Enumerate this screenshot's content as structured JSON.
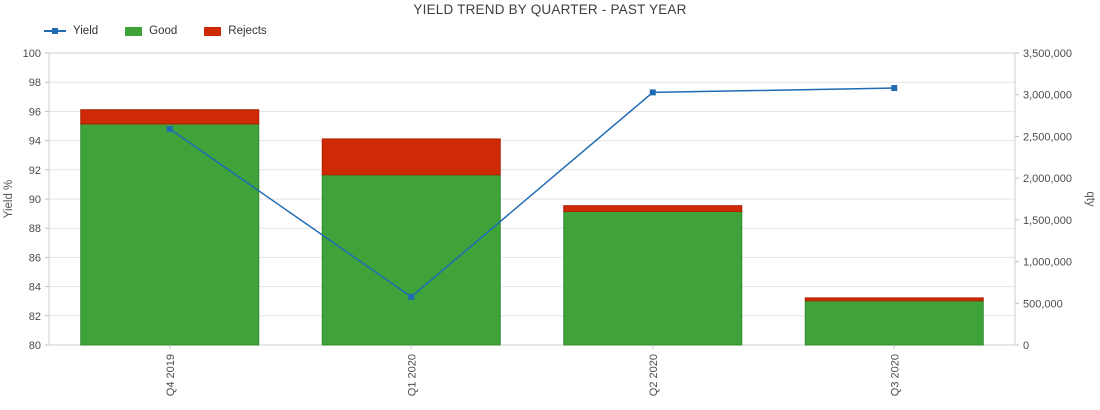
{
  "title": "YIELD TREND BY QUARTER - PAST YEAR",
  "chart_data": {
    "type": "combo",
    "stacked_bars": true,
    "title": "YIELD TREND BY QUARTER - PAST YEAR",
    "categories": [
      "Q4 2019",
      "Q1 2020",
      "Q2 2020",
      "Q3 2020"
    ],
    "series": [
      {
        "name": "Yield",
        "type": "line",
        "axis": "left",
        "color": "#1f6cb5",
        "values": [
          94.8,
          83.3,
          97.3,
          97.6
        ]
      },
      {
        "name": "Good",
        "type": "bar",
        "axis": "right",
        "color": "#3fa33a",
        "edge_color": "#2f8c2b",
        "values": [
          2650000,
          2040000,
          1600000,
          530000
        ]
      },
      {
        "name": "Rejects",
        "type": "bar",
        "axis": "right",
        "color": "#cd2a05",
        "edge_color": "#ab2304",
        "values": [
          170000,
          430000,
          70000,
          35000
        ]
      }
    ],
    "left_axis": {
      "label": "Yield %",
      "min": 80,
      "max": 100,
      "step": 2,
      "ticks": [
        "80",
        "82",
        "84",
        "86",
        "88",
        "90",
        "92",
        "94",
        "96",
        "98",
        "100"
      ]
    },
    "right_axis": {
      "label": "qty",
      "min": 0,
      "max": 3500000,
      "step": 500000,
      "ticks": [
        "0",
        "500,000",
        "1,000,000",
        "1,500,000",
        "2,000,000",
        "2,500,000",
        "3,000,000",
        "3,500,000"
      ]
    },
    "grid": true,
    "grid_color": "#e4e4e4",
    "border_color": "#cecece",
    "legend_position": "top-left"
  }
}
